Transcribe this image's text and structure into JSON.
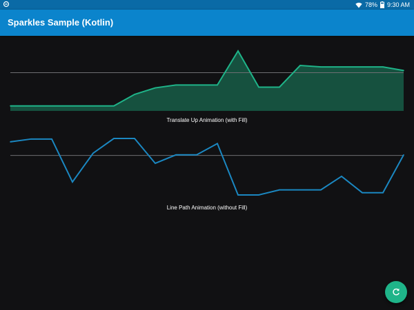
{
  "status_bar": {
    "battery": "78%",
    "time": "9:30 AM",
    "icons": [
      "notification-icon",
      "wifi-icon",
      "battery-icon"
    ]
  },
  "app_bar": {
    "title": "Sparkles Sample (Kotlin)",
    "color": "#0b84cc"
  },
  "sparkline_fill": {
    "caption": "Translate Up Animation (with Fill)",
    "line_color": "#1fb489",
    "fill_color": "#16513f",
    "baseline_value": 50
  },
  "sparkline_line": {
    "caption": "Line Path Animation (without Fill)",
    "line_color": "#1b88c2",
    "baseline_value": 50
  },
  "fab": {
    "icon": "refresh-icon",
    "color": "#1fb489"
  },
  "chart_data": [
    {
      "type": "area",
      "x": [
        0,
        1,
        2,
        3,
        4,
        5,
        6,
        7,
        8,
        9,
        10,
        11,
        12,
        13,
        14,
        15,
        16,
        17,
        18,
        19
      ],
      "values": [
        4,
        4,
        4,
        4,
        4,
        4,
        20,
        29,
        33,
        33,
        33,
        80,
        30,
        30,
        60,
        58,
        58,
        58,
        58,
        53
      ],
      "ylim": [
        0,
        80
      ],
      "baseline": 50
    },
    {
      "type": "line",
      "x": [
        0,
        1,
        2,
        3,
        4,
        5,
        6,
        7,
        8,
        9,
        10,
        11,
        12,
        13,
        14,
        15,
        16,
        17,
        18,
        19
      ],
      "values": [
        74,
        79,
        79,
        3,
        54,
        80,
        80,
        36,
        51,
        51,
        71,
        -20,
        -20,
        -11,
        -11,
        -11,
        13,
        -16,
        -16,
        51
      ],
      "ylim": [
        -20,
        80
      ],
      "baseline": 50
    }
  ]
}
